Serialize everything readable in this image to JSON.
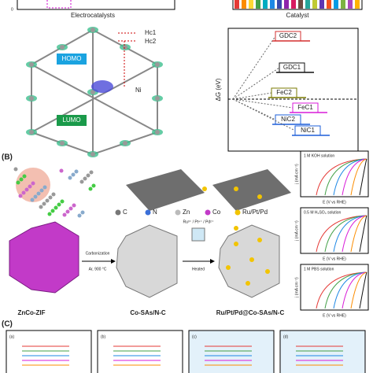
{
  "panel_a": {
    "bar_chart": {
      "zero_label": "0",
      "x_label": "Electrocatalysts"
    },
    "catalyst_label": "Catalyst",
    "structure": {
      "hc1": "Hc1",
      "hc2": "Hc2",
      "homo": "HOMO",
      "lumo": "LUMO",
      "ni": "Ni"
    },
    "delta_g": {
      "y_label": "ΔG (eV)",
      "levels": [
        "GDC2",
        "GDC1",
        "FeC2",
        "FeC1",
        "NiC2",
        "NiC1"
      ]
    }
  },
  "panel_b": {
    "label": "(B)",
    "legend": [
      "C",
      "N",
      "Zn",
      "Co",
      "Ru/Pt/Pd"
    ],
    "precursor": "ZnCo-ZIF",
    "step1": [
      "Carbonization",
      "Ar, 900 °C"
    ],
    "intermediate": "Co-SAs/N-C",
    "ions": "Ru³⁺ / Pt⁴⁺ / Pd²⁺",
    "step2": "Heated",
    "product": "Ru/Pt/Pd@Co-SAs/N-C",
    "plots": [
      {
        "solution": "1 M KOH solution",
        "x_label": "E (V vs RHE)",
        "y_label": "j (mA cm⁻²)"
      },
      {
        "solution": "0.5 M H₂SO₄ solution",
        "x_label": "E (V vs RHE)",
        "y_label": "j (mA cm⁻²)"
      },
      {
        "solution": "1 M PBS solution",
        "x_label": "E (V vs RHE)",
        "y_label": "j (mA cm⁻²)"
      }
    ]
  },
  "panel_c": {
    "label": "(C)",
    "subpanels": [
      "(a)",
      "(b)",
      "(c)",
      "(d)"
    ]
  }
}
